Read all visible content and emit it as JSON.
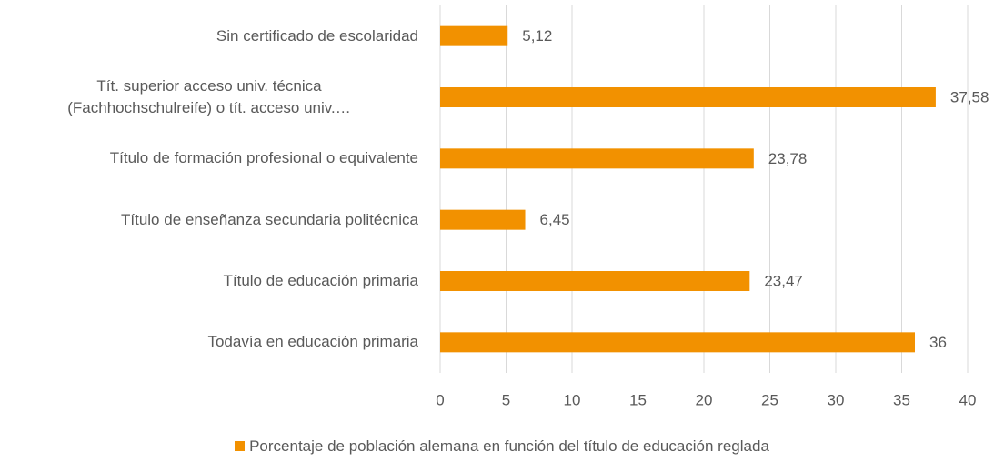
{
  "chart_data": {
    "type": "bar",
    "orientation": "horizontal",
    "categories": [
      "Sin certificado de escolaridad",
      "Tít. superior acceso univ. técnica\n(Fachhochschulreife) o tít. acceso univ.…",
      "Título de formación profesional o equivalente",
      "Título de enseñanza secundaria politécnica",
      "Título de educación primaria",
      "Todavía en educación primaria"
    ],
    "series": [
      {
        "name": "Porcentaje de población alemana en función del título de educación reglada",
        "color": "#f29100",
        "values": [
          5.12,
          37.58,
          23.78,
          6.45,
          23.47,
          36
        ],
        "value_labels": [
          "5,12",
          "37,58",
          "23,78",
          "6,45",
          "23,47",
          "36"
        ]
      }
    ],
    "xlim": [
      0,
      40
    ],
    "xticks": [
      0,
      5,
      10,
      15,
      20,
      25,
      30,
      35,
      40
    ],
    "grid": true,
    "legend": "bottom"
  }
}
